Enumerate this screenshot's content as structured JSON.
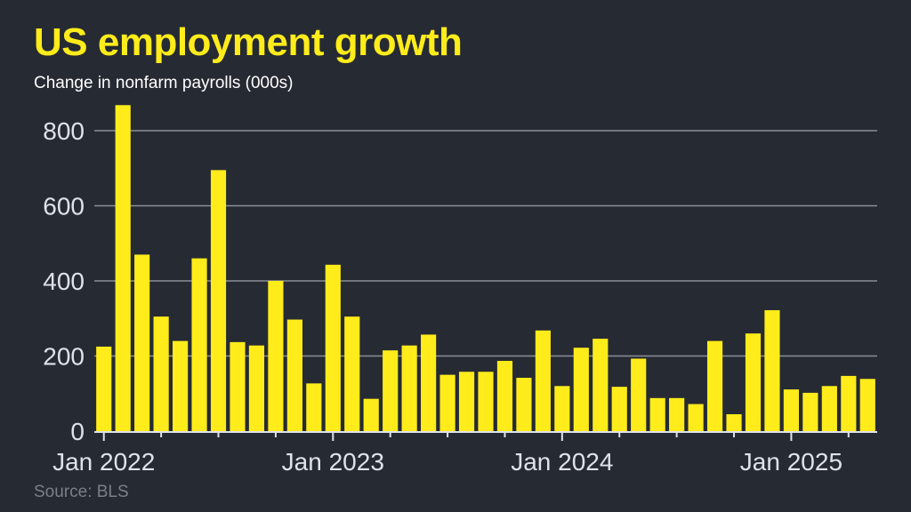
{
  "header": {
    "title": "US employment growth",
    "subtitle": "Change in nonfarm payrolls (000s)"
  },
  "footer": {
    "source": "Source: BLS"
  },
  "colors": {
    "background": "#262a33",
    "bar": "#ffec1a",
    "title": "#ffec1a",
    "grid": "#8a8e96",
    "axis_text": "#dfe2e8",
    "source_text": "#7b7f88"
  },
  "chart_data": {
    "type": "bar",
    "title": "US employment growth",
    "subtitle": "Change in nonfarm payrolls (000s)",
    "xlabel": "",
    "ylabel": "",
    "ylim": [
      0,
      870
    ],
    "yticks": [
      0,
      200,
      400,
      600,
      800
    ],
    "grid": true,
    "x_tick_labels": [
      {
        "index": 0,
        "label": "Jan 2022"
      },
      {
        "index": 12,
        "label": "Jan 2023"
      },
      {
        "index": 24,
        "label": "Jan 2024"
      },
      {
        "index": 36,
        "label": "Jan 2025"
      }
    ],
    "categories": [
      "Jan 2022",
      "Feb 2022",
      "Mar 2022",
      "Apr 2022",
      "May 2022",
      "Jun 2022",
      "Jul 2022",
      "Aug 2022",
      "Sep 2022",
      "Oct 2022",
      "Nov 2022",
      "Dec 2022",
      "Jan 2023",
      "Feb 2023",
      "Mar 2023",
      "Apr 2023",
      "May 2023",
      "Jun 2023",
      "Jul 2023",
      "Aug 2023",
      "Sep 2023",
      "Oct 2023",
      "Nov 2023",
      "Dec 2023",
      "Jan 2024",
      "Feb 2024",
      "Mar 2024",
      "Apr 2024",
      "May 2024",
      "Jun 2024",
      "Jul 2024",
      "Aug 2024",
      "Sep 2024",
      "Oct 2024",
      "Nov 2024",
      "Dec 2024",
      "Jan 2025",
      "Feb 2025",
      "Mar 2025",
      "Apr 2025",
      "May 2025"
    ],
    "values": [
      225,
      868,
      470,
      305,
      240,
      460,
      695,
      237,
      228,
      400,
      297,
      127,
      443,
      305,
      86,
      215,
      228,
      257,
      150,
      158,
      158,
      187,
      142,
      268,
      120,
      222,
      246,
      118,
      193,
      88,
      88,
      72,
      240,
      45,
      260,
      322,
      111,
      102,
      120,
      147,
      139
    ],
    "source": "Source: BLS"
  }
}
